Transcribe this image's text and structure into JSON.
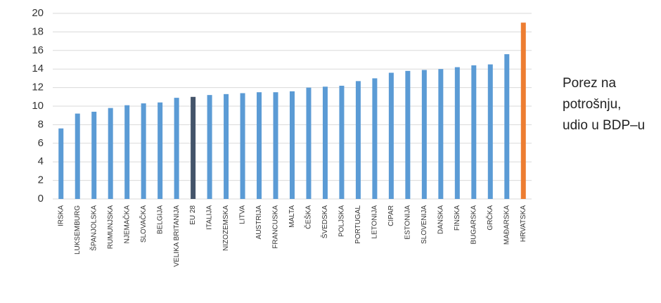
{
  "chart_data": {
    "type": "bar",
    "title": "Porez na potrošnju, udio u BDP–u",
    "categories": [
      "IRSKA",
      "LUKSEMBURG",
      "ŠPANJOLSKA",
      "RUMUNJSKA",
      "NJEMAČKA",
      "SLOVAČKA",
      "BELGIJA",
      "VELIKA BRITANIJA",
      "EU 28",
      "ITALIJA",
      "NIZOZEMSKA",
      "LITVA",
      "AUSTRIJA",
      "FRANCUSKA",
      "MALTA",
      "ČEŠKA",
      "ŠVEDSKA",
      "POLJSKA",
      "PORTUGAL",
      "LETONIJA",
      "CIPAR",
      "ESTONIJA",
      "SLOVENIJA",
      "DANSKA",
      "FINSKA",
      "BUGARSKA",
      "GRČKA",
      "MAĐARSKA",
      "HRVATSKA"
    ],
    "values": [
      7.6,
      9.2,
      9.4,
      9.8,
      10.1,
      10.3,
      10.4,
      10.9,
      11.0,
      11.2,
      11.3,
      11.4,
      11.5,
      11.5,
      11.6,
      12.0,
      12.1,
      12.2,
      12.7,
      13.0,
      13.6,
      13.8,
      13.9,
      14.0,
      14.2,
      14.4,
      14.5,
      15.6,
      19.0
    ],
    "colors": [
      "#5b9bd5",
      "#5b9bd5",
      "#5b9bd5",
      "#5b9bd5",
      "#5b9bd5",
      "#5b9bd5",
      "#5b9bd5",
      "#5b9bd5",
      "#44546a",
      "#5b9bd5",
      "#5b9bd5",
      "#5b9bd5",
      "#5b9bd5",
      "#5b9bd5",
      "#5b9bd5",
      "#5b9bd5",
      "#5b9bd5",
      "#5b9bd5",
      "#5b9bd5",
      "#5b9bd5",
      "#5b9bd5",
      "#5b9bd5",
      "#5b9bd5",
      "#5b9bd5",
      "#5b9bd5",
      "#5b9bd5",
      "#5b9bd5",
      "#5b9bd5",
      "#ed7d31"
    ],
    "ylim": [
      0,
      20
    ],
    "yticks": [
      0,
      2,
      4,
      6,
      8,
      10,
      12,
      14,
      16,
      18,
      20
    ],
    "grid": true
  }
}
